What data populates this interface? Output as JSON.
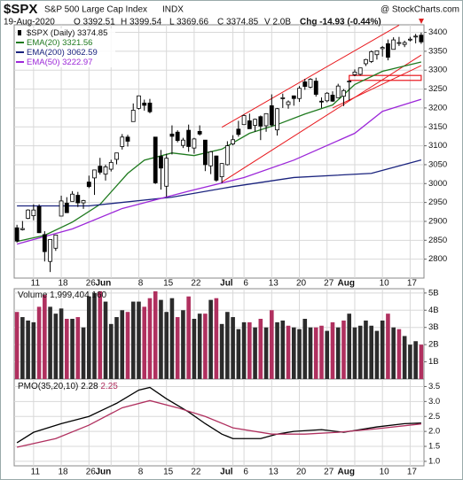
{
  "header": {
    "symbol": "$SPX",
    "name": "S&P 500 Large Cap Index",
    "exchange": "INDX",
    "source": "@ StockCharts.com",
    "date": "19-Aug-2020",
    "quote": [
      "O 3392.51",
      "H 3399.54",
      "L 3369.66",
      "C 3374.85",
      "V 2.0B"
    ],
    "change": "Chg -14.93 (-0.44%)"
  },
  "chart_data": [
    {
      "type": "candlestick",
      "name": "$SPX (Daily)",
      "color": "#000000",
      "dates": [
        "2020-05-06",
        "2020-05-07",
        "2020-05-08",
        "2020-05-11",
        "2020-05-12",
        "2020-05-13",
        "2020-05-14",
        "2020-05-15",
        "2020-05-18",
        "2020-05-19",
        "2020-05-20",
        "2020-05-21",
        "2020-05-22",
        "2020-05-26",
        "2020-05-27",
        "2020-05-28",
        "2020-05-29",
        "2020-06-01",
        "2020-06-02",
        "2020-06-03",
        "2020-06-04",
        "2020-06-05",
        "2020-06-08",
        "2020-06-09",
        "2020-06-10",
        "2020-06-11",
        "2020-06-12",
        "2020-06-15",
        "2020-06-16",
        "2020-06-17",
        "2020-06-18",
        "2020-06-19",
        "2020-06-22",
        "2020-06-23",
        "2020-06-24",
        "2020-06-25",
        "2020-06-26",
        "2020-06-29",
        "2020-06-30",
        "2020-07-01",
        "2020-07-02",
        "2020-07-06",
        "2020-07-07",
        "2020-07-08",
        "2020-07-09",
        "2020-07-10",
        "2020-07-13",
        "2020-07-14",
        "2020-07-15",
        "2020-07-16",
        "2020-07-17",
        "2020-07-20",
        "2020-07-21",
        "2020-07-22",
        "2020-07-23",
        "2020-07-24",
        "2020-07-27",
        "2020-07-28",
        "2020-07-29",
        "2020-07-30",
        "2020-07-31",
        "2020-08-03",
        "2020-08-04",
        "2020-08-05",
        "2020-08-06",
        "2020-08-07",
        "2020-08-10",
        "2020-08-11",
        "2020-08-12",
        "2020-08-13",
        "2020-08-14",
        "2020-08-17",
        "2020-08-18",
        "2020-08-19"
      ],
      "open": [
        2883,
        2878,
        2908,
        2915,
        2939,
        2865,
        2794,
        2829,
        2914,
        2948,
        2953,
        2969,
        2949,
        3004,
        3015,
        3046,
        3025,
        3038,
        3064,
        3098,
        3123,
        3164,
        3199,
        3213,
        3213,
        3123,
        3072,
        2993,
        3131,
        3136,
        3101,
        3141,
        3094,
        3138,
        3115,
        3047,
        3073,
        3018,
        3050,
        3105,
        3144,
        3156,
        3166,
        3154,
        3177,
        3153,
        3206,
        3142,
        3225,
        3209,
        3232,
        3225,
        3269,
        3255,
        3271,
        3218,
        3219,
        3234,
        3227,
        3231,
        3270,
        3288,
        3289,
        3317,
        3323,
        3341,
        3357,
        3370,
        3355,
        3372,
        3368,
        3380,
        3388,
        3392.51
      ],
      "high": [
        2891,
        2901,
        2932,
        2945,
        2945,
        2874,
        2852,
        2865,
        2968,
        2964,
        2980,
        2978,
        2957,
        3021,
        3036,
        3068,
        3050,
        3063,
        3081,
        3131,
        3129,
        3212,
        3233,
        3222,
        3224,
        3123,
        3089,
        3079,
        3154,
        3141,
        3121,
        3156,
        3121,
        3154,
        3115,
        3086,
        3074,
        3054,
        3112,
        3128,
        3166,
        3183,
        3185,
        3172,
        3180,
        3186,
        3236,
        3200,
        3238,
        3220,
        3233,
        3258,
        3277,
        3279,
        3280,
        3228,
        3242,
        3244,
        3264,
        3250,
        3273,
        3302,
        3306,
        3330,
        3352,
        3352,
        3364,
        3381,
        3387,
        3388,
        3378,
        3388,
        3396,
        3399.54
      ],
      "low": [
        2844,
        2876,
        2906,
        2903,
        2869,
        2794,
        2766,
        2822,
        2914,
        2922,
        2953,
        2938,
        2933,
        2988,
        2970,
        3024,
        3008,
        3032,
        3051,
        3090,
        3098,
        3164,
        3196,
        3193,
        3186,
        2999,
        2984,
        2965,
        3077,
        3109,
        3094,
        3084,
        3079,
        3127,
        3033,
        3025,
        3005,
        3001,
        3048,
        3101,
        3124,
        3155,
        3146,
        3137,
        3115,
        3137,
        3150,
        3127,
        3200,
        3198,
        3206,
        3216,
        3248,
        3252,
        3230,
        3200,
        3215,
        3216,
        3227,
        3205,
        3220,
        3284,
        3286,
        3311,
        3319,
        3328,
        3336,
        3326,
        3355,
        3364,
        3361,
        3376,
        3371,
        3369.66
      ],
      "close": [
        2848,
        2881,
        2930,
        2930,
        2870,
        2820,
        2852,
        2864,
        2954,
        2923,
        2972,
        2949,
        2955,
        2992,
        3036,
        3030,
        3044,
        3056,
        3081,
        3123,
        3112,
        3194,
        3232,
        3207,
        3190,
        3002,
        3041,
        3067,
        3125,
        3114,
        3115,
        3098,
        3118,
        3131,
        3050,
        3084,
        3009,
        3053,
        3100,
        3116,
        3130,
        3180,
        3145,
        3170,
        3152,
        3185,
        3155,
        3198,
        3227,
        3216,
        3225,
        3252,
        3257,
        3276,
        3236,
        3216,
        3239,
        3218,
        3258,
        3246,
        3271,
        3295,
        3306,
        3328,
        3349,
        3351,
        3360,
        3334,
        3380,
        3373,
        3373,
        3382,
        3390,
        3374.85
      ],
      "series": [
        {
          "name": "EMA(20)",
          "color": "#1f7a1f",
          "x": [
            "2020-05-06",
            "2020-05-13",
            "2020-05-20",
            "2020-05-28",
            "2020-06-04",
            "2020-06-09",
            "2020-06-16",
            "2020-06-22",
            "2020-06-29",
            "2020-07-07",
            "2020-07-14",
            "2020-07-21",
            "2020-07-28",
            "2020-08-03",
            "2020-08-10",
            "2020-08-19"
          ],
          "values": [
            2847,
            2863,
            2898,
            2945,
            3027,
            3062,
            3081,
            3074,
            3091,
            3133,
            3156,
            3184,
            3208,
            3262,
            3297,
            3321.56
          ]
        },
        {
          "name": "EMA(200)",
          "color": "#1a237e",
          "x": [
            "2020-05-06",
            "2020-05-26",
            "2020-06-16",
            "2020-07-01",
            "2020-07-17",
            "2020-08-06",
            "2020-08-19"
          ],
          "values": [
            2941,
            2941,
            2964,
            2992,
            3016,
            3027,
            3062.59
          ]
        },
        {
          "name": "EMA(50)",
          "color": "#9c27d9",
          "x": [
            "2020-05-06",
            "2020-05-20",
            "2020-06-03",
            "2020-06-19",
            "2020-07-06",
            "2020-07-17",
            "2020-08-03",
            "2020-08-10",
            "2020-08-19"
          ],
          "values": [
            2840,
            2880,
            2934,
            2980,
            3016,
            3062,
            3133,
            3191,
            3222.97
          ]
        }
      ],
      "trendlines": [
        {
          "color": "#e8191e",
          "x": [
            "2020-06-29",
            "2020-08-13"
          ],
          "y": [
            3149,
            3419
          ]
        },
        {
          "color": "#e8191e",
          "x": [
            "2020-06-29",
            "2020-08-19"
          ],
          "y": [
            3004,
            3340
          ]
        },
        {
          "color": "#e8191e",
          "x": [
            "2020-07-28",
            "2020-08-19"
          ],
          "y": [
            3200,
            3312
          ]
        }
      ],
      "box": {
        "color": "#e8191e",
        "x": [
          "2020-07-31",
          "2020-08-19"
        ],
        "y": [
          3273,
          3286
        ]
      },
      "xlabels": [
        {
          "date": "2020-05-11",
          "label": "11"
        },
        {
          "date": "2020-05-18",
          "label": "18"
        },
        {
          "date": "2020-05-26",
          "label": "26"
        },
        {
          "date": "2020-06-01",
          "label": "Jun"
        },
        {
          "date": "2020-06-08",
          "label": "8"
        },
        {
          "date": "2020-06-15",
          "label": "15"
        },
        {
          "date": "2020-06-22",
          "label": "22"
        },
        {
          "date": "2020-07-01",
          "label": "Jul"
        },
        {
          "date": "2020-07-06",
          "label": "6"
        },
        {
          "date": "2020-07-13",
          "label": "13"
        },
        {
          "date": "2020-07-20",
          "label": "20"
        },
        {
          "date": "2020-07-27",
          "label": "27"
        },
        {
          "date": "2020-08-03",
          "label": "Aug"
        },
        {
          "date": "2020-08-10",
          "label": "10"
        },
        {
          "date": "2020-08-17",
          "label": "17"
        }
      ],
      "ylim": [
        2750,
        3420
      ],
      "yticks": [
        2800,
        2850,
        2900,
        2950,
        3000,
        3050,
        3100,
        3150,
        3200,
        3250,
        3300,
        3350,
        3400
      ],
      "grid": true
    },
    {
      "type": "bar",
      "name": "Volume",
      "up_color": "#2b2b2b",
      "down_color": "#b0305f",
      "values": [
        3900000000.0,
        3600000000.0,
        3400000000.0,
        3300000000.0,
        4200000000.0,
        4900000000.0,
        4200000000.0,
        3800000000.0,
        4100000000.0,
        3500000000.0,
        3500000000.0,
        3600000000.0,
        3000000000.0,
        4800000000.0,
        5000000000.0,
        5100000000.0,
        4500000000.0,
        3200000000.0,
        3600000000.0,
        4000000000.0,
        3900000000.0,
        4500000000.0,
        4500000000.0,
        4200000000.0,
        4700000000.0,
        5100000000.0,
        4600000000.0,
        3900000000.0,
        4700000000.0,
        3600000000.0,
        4000000000.0,
        4800000000.0,
        3500000000.0,
        3800000000.0,
        3800000000.0,
        4600000000.0,
        4700000000.0,
        3200000000.0,
        3900000000.0,
        3600000000.0,
        2900000000.0,
        3300000000.0,
        3300000000.0,
        3000000000.0,
        3500000000.0,
        3000000000.0,
        4000000000.0,
        3300000000.0,
        3400000000.0,
        3100000000.0,
        3000000000.0,
        2900000000.0,
        3500000000.0,
        3000000000.0,
        3000000000.0,
        3100000000.0,
        2800000000.0,
        3300000000.0,
        3000000000.0,
        3400000000.0,
        3800000000.0,
        3000000000.0,
        3100000000.0,
        3400000000.0,
        3100000000.0,
        2800000000.0,
        3400000000.0,
        3800000000.0,
        3000000000.0,
        2900000000.0,
        2500000000.0,
        2000000000.0,
        2200000000.0,
        1999404160
      ],
      "last_label": "1,999,404,160",
      "ylim": [
        0,
        5250000000.0
      ],
      "yticks": [
        {
          "value": 1000000000.0,
          "label": "1B"
        },
        {
          "value": 2000000000.0,
          "label": "2B"
        },
        {
          "value": 3000000000.0,
          "label": "3B"
        },
        {
          "value": 4000000000.0,
          "label": "4B"
        },
        {
          "value": 5000000000.0,
          "label": "5B"
        }
      ],
      "grid": true
    },
    {
      "type": "line",
      "name": "PMO(35,20,10)",
      "series": [
        {
          "name": "PMO",
          "color": "#000000",
          "x": [
            "2020-05-06",
            "2020-05-11",
            "2020-05-18",
            "2020-05-26",
            "2020-06-02",
            "2020-06-08",
            "2020-06-10",
            "2020-06-15",
            "2020-06-19",
            "2020-06-24",
            "2020-06-29",
            "2020-07-01",
            "2020-07-02",
            "2020-07-09",
            "2020-07-14",
            "2020-07-17",
            "2020-07-24",
            "2020-07-30",
            "2020-08-07",
            "2020-08-14",
            "2020-08-19"
          ],
          "values": [
            1.62,
            1.97,
            2.26,
            2.5,
            2.94,
            3.38,
            3.47,
            3.09,
            2.65,
            2.26,
            1.91,
            1.76,
            1.76,
            1.76,
            1.91,
            2.0,
            2.06,
            1.97,
            2.15,
            2.26,
            2.28
          ]
        },
        {
          "name": "Signal",
          "color": "#b0305f",
          "x": [
            "2020-05-06",
            "2020-05-15",
            "2020-05-26",
            "2020-06-03",
            "2020-06-10",
            "2020-06-17",
            "2020-06-24",
            "2020-07-01",
            "2020-07-13",
            "2020-07-21",
            "2020-07-29",
            "2020-08-07",
            "2020-08-19"
          ],
          "values": [
            1.47,
            1.76,
            2.21,
            2.79,
            3.03,
            2.79,
            2.5,
            2.12,
            1.91,
            1.91,
            1.97,
            2.09,
            2.25
          ]
        }
      ],
      "ylim": [
        0.85,
        3.75
      ],
      "yticks": [
        {
          "value": 1,
          "label": "1.0"
        },
        {
          "value": 1.5,
          "label": "1.5"
        },
        {
          "value": 2,
          "label": "2.0"
        },
        {
          "value": 2.5,
          "label": "2.5"
        },
        {
          "value": 3,
          "label": "3.0"
        },
        {
          "value": 3.5,
          "label": "3.5"
        }
      ],
      "grid": true
    }
  ]
}
